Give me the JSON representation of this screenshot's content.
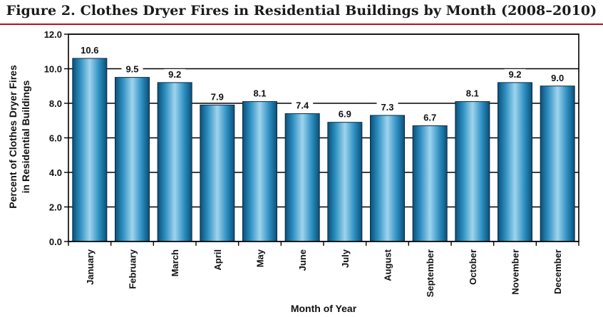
{
  "title": "Figure 2.  Clothes Dryer Fires in Residential Buildings by Month (2008–2010)",
  "chart_data": {
    "type": "bar",
    "categories": [
      "January",
      "February",
      "March",
      "April",
      "May",
      "June",
      "July",
      "August",
      "September",
      "October",
      "November",
      "December"
    ],
    "values": [
      10.6,
      9.5,
      9.2,
      7.9,
      8.1,
      7.4,
      6.9,
      7.3,
      6.7,
      8.1,
      9.2,
      9.0
    ],
    "data_labels": [
      "10.6",
      "9.5",
      "9.2",
      "7.9",
      "8.1",
      "7.4",
      "6.9",
      "7.3",
      "6.7",
      "8.1",
      "9.2",
      "9.0"
    ],
    "title": "Figure 2.  Clothes Dryer Fires in Residential Buildings by Month (2008–2010)",
    "xlabel": "Month of Year",
    "ylabel_line1": "Percent of Clothes Dryer Fires",
    "ylabel_line2": "in Residential Buildings",
    "ylim": [
      0,
      12
    ],
    "yticks": [
      "0.0",
      "2.0",
      "4.0",
      "6.0",
      "8.0",
      "10.0",
      "12.0"
    ],
    "grid": true,
    "bar_color": "#1f86b4"
  }
}
